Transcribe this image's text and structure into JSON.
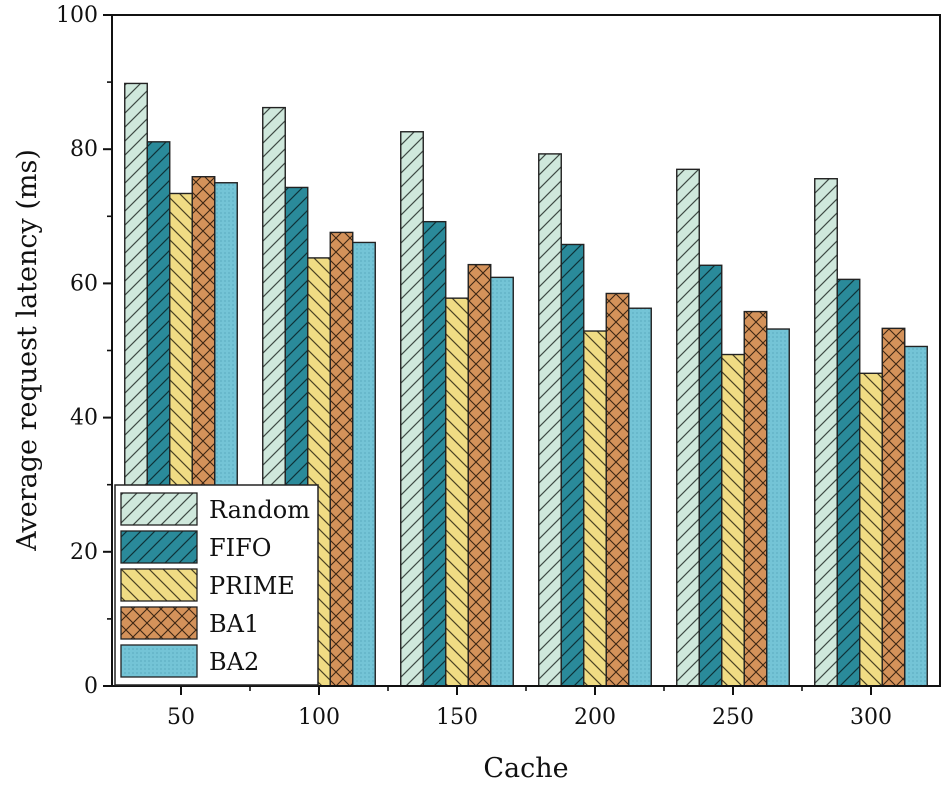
{
  "chart_data": {
    "type": "bar",
    "title": "",
    "xlabel": "Cache",
    "ylabel": "Average request latency (ms)",
    "categories": [
      "50",
      "100",
      "150",
      "200",
      "250",
      "300"
    ],
    "ylim": [
      0,
      100
    ],
    "yticks": [
      "0",
      "20",
      "40",
      "60",
      "80",
      "100"
    ],
    "grid": false,
    "legend_position": "bottom-left",
    "series": [
      {
        "name": "Random",
        "color": "#cfe8dc",
        "pattern": "diag-right",
        "values": [
          89.8,
          86.2,
          82.6,
          79.3,
          77.0,
          75.6
        ]
      },
      {
        "name": "FIFO",
        "color": "#2a8a9a",
        "pattern": "diag-left",
        "values": [
          81.1,
          74.3,
          69.2,
          65.8,
          62.7,
          60.6
        ]
      },
      {
        "name": "PRIME",
        "color": "#f0dc84",
        "pattern": "diag-back",
        "values": [
          73.4,
          63.8,
          57.8,
          52.9,
          49.4,
          46.6
        ]
      },
      {
        "name": "BA1",
        "color": "#d4925a",
        "pattern": "cross",
        "values": [
          75.9,
          67.6,
          62.8,
          58.5,
          55.8,
          53.3
        ]
      },
      {
        "name": "BA2",
        "color": "#74c4d6",
        "pattern": "dots",
        "values": [
          75.0,
          66.1,
          60.9,
          56.3,
          53.2,
          50.6
        ]
      }
    ]
  }
}
